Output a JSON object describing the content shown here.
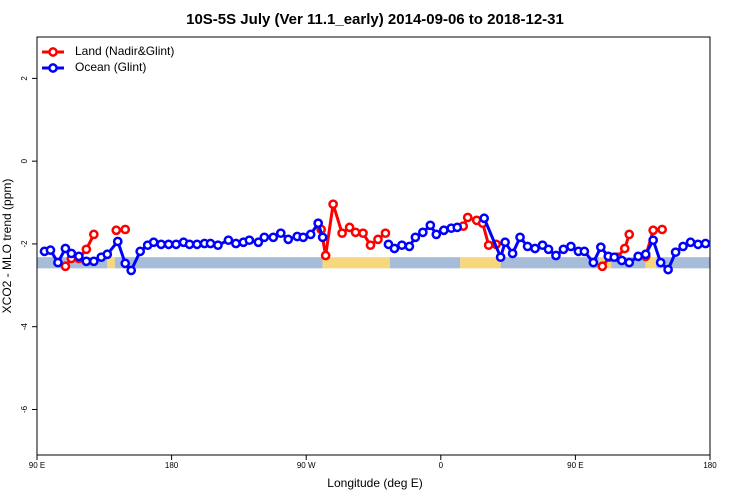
{
  "chart_data": {
    "type": "line",
    "title": "10S-5S July (Ver 11.1_early)   2014-09-06 to 2018-12-31",
    "xlabel": "Longitude (deg E)",
    "ylabel": "XCO2 - MLO trend (ppm)",
    "xlim": [
      90,
      540
    ],
    "ylim": [
      -7.1,
      3
    ],
    "xticks": [
      {
        "value": 90,
        "label": "90 E"
      },
      180,
      {
        "value": 270,
        "label": "90 W"
      },
      {
        "value": 360,
        "label": "0"
      },
      {
        "value": 450,
        "label": "90 E"
      },
      {
        "value": 540,
        "label": "180"
      }
    ],
    "yticks": [
      -6,
      -4,
      -2,
      0,
      2
    ],
    "legend": "top-left",
    "strip": {
      "ylim": [
        -2.59,
        -2.32
      ],
      "segments": [
        {
          "xlim": [
            90,
            137
          ],
          "color": "#a7bcd8"
        },
        {
          "xlim": [
            137,
            142
          ],
          "color": "#f7d77c"
        },
        {
          "xlim": [
            142,
            281
          ],
          "color": "#a7bcd8"
        },
        {
          "xlim": [
            281,
            326
          ],
          "color": "#f7d77c"
        },
        {
          "xlim": [
            326,
            373
          ],
          "color": "#a7bcd8"
        },
        {
          "xlim": [
            373,
            400
          ],
          "color": "#f7d77c"
        },
        {
          "xlim": [
            400,
            466
          ],
          "color": "#a7bcd8"
        },
        {
          "xlim": [
            466,
            474
          ],
          "color": "#f7d77c"
        },
        {
          "xlim": [
            474,
            497
          ],
          "color": "#a7bcd8"
        },
        {
          "xlim": [
            497,
            504
          ],
          "color": "#f7d77c"
        },
        {
          "xlim": [
            504,
            540
          ],
          "color": "#a7bcd8"
        }
      ]
    },
    "series": [
      {
        "name": "Land (Nadir&Glint)",
        "color": "#ff0000",
        "x": [
          109,
          113,
          118,
          123,
          128,
          null,
          143,
          149,
          null,
          280,
          283,
          288,
          294,
          299,
          303,
          308,
          313,
          318,
          323,
          null,
          375,
          378,
          384,
          388,
          392,
          397,
          null,
          468,
          473,
          478,
          483,
          486,
          null,
          497,
          502,
          508
        ],
        "values": [
          -2.54,
          -2.35,
          -2.35,
          -2.13,
          -1.77,
          null,
          -1.67,
          -1.65,
          null,
          -1.65,
          -2.28,
          -1.04,
          -1.74,
          -1.6,
          -1.72,
          -1.74,
          -2.03,
          -1.89,
          -1.74,
          null,
          -1.57,
          -1.36,
          -1.43,
          -1.5,
          -2.03,
          -2.01,
          null,
          -2.54,
          -2.32,
          -2.32,
          -2.11,
          -1.77,
          null,
          -2.3,
          -1.67,
          -1.65
        ]
      },
      {
        "name": "Ocean (Glint)",
        "color": "#0000ff",
        "x": [
          95,
          99,
          104,
          109,
          113,
          118,
          123,
          128,
          133,
          137,
          144,
          149,
          153,
          159,
          164,
          168,
          173,
          178,
          183,
          188,
          192,
          197,
          202,
          206,
          211,
          218,
          223,
          228,
          232,
          238,
          242,
          248,
          253,
          258,
          264,
          268,
          273,
          278,
          281,
          null,
          325,
          329,
          334,
          339,
          343,
          348,
          353,
          357,
          362,
          367,
          371,
          null,
          389,
          400,
          403,
          408,
          413,
          418,
          423,
          428,
          432,
          437,
          442,
          447,
          452,
          456,
          462,
          467,
          472,
          476,
          481,
          486,
          492,
          497,
          502,
          507,
          512,
          517,
          522,
          527,
          532,
          537
        ],
        "values": [
          -2.18,
          -2.15,
          -2.45,
          -2.11,
          -2.23,
          -2.3,
          -2.42,
          -2.42,
          -2.32,
          -2.25,
          -1.94,
          -2.47,
          -2.64,
          -2.18,
          -2.03,
          -1.96,
          -2.01,
          -2.01,
          -2.01,
          -1.96,
          -2.01,
          -2.01,
          -1.99,
          -1.99,
          -2.03,
          -1.91,
          -1.99,
          -1.96,
          -1.91,
          -1.96,
          -1.84,
          -1.84,
          -1.74,
          -1.89,
          -1.82,
          -1.84,
          -1.77,
          -1.5,
          -1.84,
          null,
          -2.01,
          -2.11,
          -2.03,
          -2.06,
          -1.84,
          -1.72,
          -1.55,
          -1.77,
          -1.67,
          -1.62,
          -1.6,
          null,
          -1.38,
          -2.32,
          -1.96,
          -2.23,
          -1.84,
          -2.06,
          -2.11,
          -2.03,
          -2.13,
          -2.28,
          -2.13,
          -2.06,
          -2.18,
          -2.18,
          -2.45,
          -2.08,
          -2.3,
          -2.32,
          -2.4,
          -2.45,
          -2.3,
          -2.25,
          -1.91,
          -2.45,
          -2.62,
          -2.2,
          -2.06,
          -1.96,
          -2.01,
          -1.99
        ]
      }
    ]
  }
}
